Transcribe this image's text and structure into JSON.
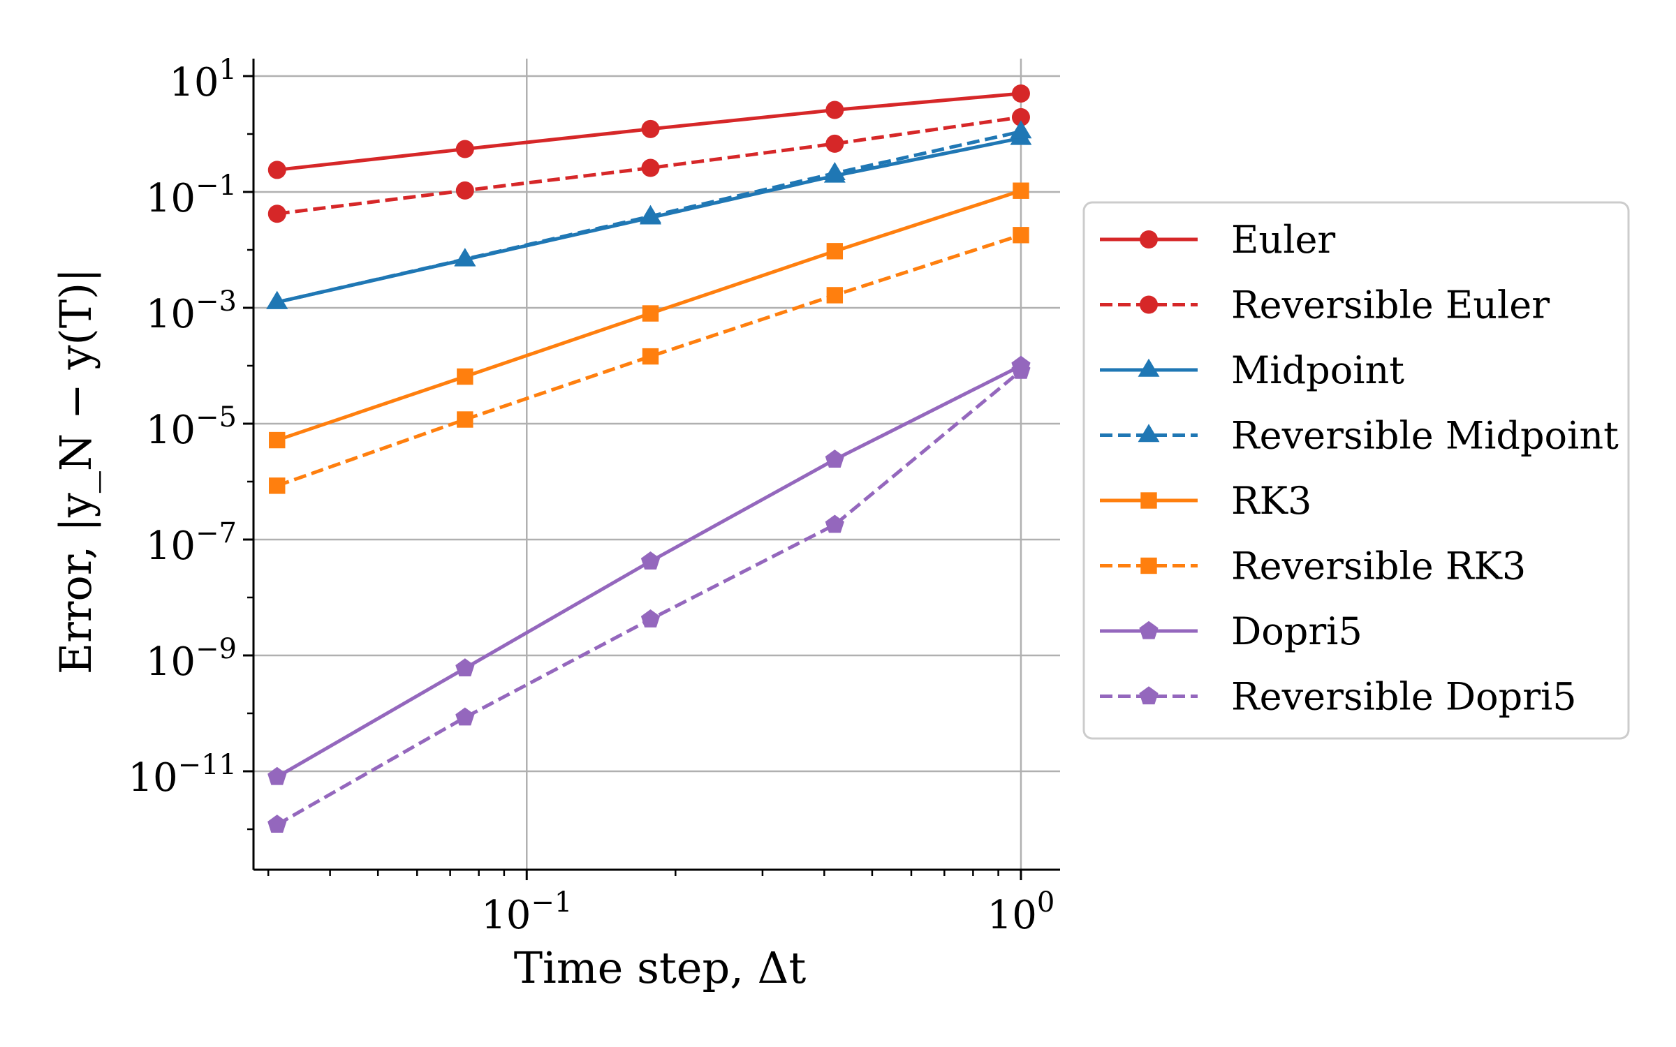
{
  "chart_data": {
    "type": "line",
    "xlabel": "Time step, Δt",
    "ylabel": "Error, |y_N − y(T)|",
    "x_scale": "log",
    "y_scale": "log",
    "xlim": [
      0.028,
      1.2
    ],
    "ylim": [
      2e-13,
      20
    ],
    "x_ticks": [
      {
        "value": 0.1,
        "base": "10",
        "exp": "−1"
      },
      {
        "value": 1,
        "base": "10",
        "exp": "0"
      }
    ],
    "y_ticks": [
      {
        "value": 10,
        "base": "10",
        "exp": "1"
      },
      {
        "value": 0.1,
        "base": "10",
        "exp": "−1"
      },
      {
        "value": 0.001,
        "base": "10",
        "exp": "−3"
      },
      {
        "value": 1e-05,
        "base": "10",
        "exp": "−5"
      },
      {
        "value": 1e-07,
        "base": "10",
        "exp": "−7"
      },
      {
        "value": 1e-09,
        "base": "10",
        "exp": "−9"
      },
      {
        "value": 1e-11,
        "base": "10",
        "exp": "−11"
      }
    ],
    "grid": true,
    "legend_position": "outside-right",
    "x": [
      0.03125,
      0.075,
      0.178,
      0.42,
      1.0
    ],
    "series": [
      {
        "name": "Euler",
        "color": "#d62728",
        "dash": "solid",
        "marker": "circle",
        "values": [
          0.24,
          0.55,
          1.22,
          2.6,
          5.0
        ]
      },
      {
        "name": "Reversible Euler",
        "color": "#d62728",
        "dash": "dashed",
        "marker": "circle",
        "values": [
          0.042,
          0.106,
          0.26,
          0.68,
          1.95
        ]
      },
      {
        "name": "Midpoint",
        "color": "#1f77b4",
        "dash": "solid",
        "marker": "triangle",
        "values": [
          0.00125,
          0.0068,
          0.036,
          0.19,
          0.85
        ]
      },
      {
        "name": "Reversible Midpoint",
        "color": "#1f77b4",
        "dash": "dashed",
        "marker": "triangle",
        "values": [
          0.00125,
          0.0069,
          0.038,
          0.21,
          1.1
        ]
      },
      {
        "name": "RK3",
        "color": "#ff7f0e",
        "dash": "solid",
        "marker": "square",
        "values": [
          5.2e-06,
          6.5e-05,
          0.0008,
          0.0095,
          0.105
        ]
      },
      {
        "name": "Reversible RK3",
        "color": "#ff7f0e",
        "dash": "dashed",
        "marker": "square",
        "values": [
          8.5e-07,
          1.18e-05,
          0.000145,
          0.00165,
          0.018
        ]
      },
      {
        "name": "Dopri5",
        "color": "#9467bd",
        "dash": "solid",
        "marker": "pentagon",
        "values": [
          8e-12,
          6e-10,
          4.2e-08,
          2.4e-06,
          0.0001
        ]
      },
      {
        "name": "Reversible Dopri5",
        "color": "#9467bd",
        "dash": "dashed",
        "marker": "pentagon",
        "values": [
          1.2e-12,
          8.5e-11,
          4.2e-09,
          1.8e-07,
          8.2e-05
        ]
      }
    ]
  }
}
